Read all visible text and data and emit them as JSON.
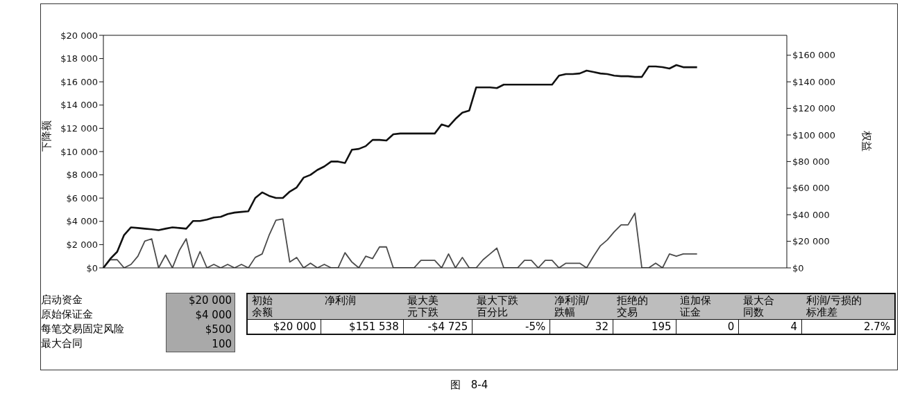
{
  "chart_data": [
    {
      "type": "line",
      "categories": [
        null,
        null,
        null,
        null,
        null,
        null,
        null,
        null,
        null,
        null,
        null,
        null,
        null,
        null,
        null,
        null,
        null,
        null,
        null,
        null,
        null,
        null,
        null,
        null,
        null,
        null,
        null,
        null,
        null,
        null,
        null,
        null,
        null,
        null,
        null,
        null,
        null,
        null,
        null,
        null,
        null,
        null,
        null,
        null,
        null,
        null,
        null,
        null,
        null,
        null,
        null,
        null,
        null,
        null,
        null,
        null,
        null,
        null,
        null,
        null,
        null,
        null,
        null,
        null,
        null,
        null,
        null,
        null,
        null,
        null,
        null,
        null,
        null,
        null,
        null,
        null,
        null,
        null,
        null,
        null,
        null,
        null,
        null,
        null,
        null,
        null,
        null,
        null,
        null,
        null,
        null,
        null,
        null,
        null,
        null,
        null,
        null,
        null,
        null,
        null
      ],
      "series": [
        {
          "color": "#4a4a4a",
          "values": [
            0,
            700,
            700,
            0,
            300,
            1000,
            2300,
            2500,
            0,
            1100,
            0,
            1500,
            2500,
            0,
            1400,
            0,
            300,
            0,
            300,
            0,
            300,
            0,
            900,
            1200,
            2800,
            4100,
            4200,
            500,
            900,
            0,
            400,
            0,
            300,
            0,
            0,
            1300,
            500,
            0,
            1000,
            800,
            1800,
            1800,
            0,
            0,
            0,
            0,
            650,
            650,
            650,
            0,
            1200,
            0,
            900,
            0,
            0,
            700,
            1200,
            1700,
            0,
            0,
            0,
            650,
            650,
            0,
            650,
            650,
            0,
            400,
            400,
            400,
            0,
            1000,
            1900,
            2400,
            3100,
            3700,
            3700,
            4700,
            0,
            0,
            400,
            0,
            1200,
            1000,
            1200,
            1200,
            1200,
            null,
            null,
            null,
            null,
            null,
            null,
            null,
            null,
            null,
            null,
            null,
            null,
            null
          ]
        },
        {
          "color": "#111111",
          "axis": "y2",
          "values": [
            0,
            6800,
            12100,
            24700,
            30500,
            30000,
            29500,
            29000,
            28400,
            29500,
            30500,
            30000,
            29500,
            35300,
            35300,
            36300,
            37900,
            38400,
            40500,
            41600,
            42100,
            42600,
            52600,
            56800,
            54200,
            52600,
            52600,
            57400,
            60500,
            67900,
            70000,
            73700,
            76300,
            80000,
            80000,
            78900,
            88900,
            89500,
            91600,
            96300,
            96300,
            95800,
            100500,
            101100,
            101100,
            101100,
            101100,
            101100,
            101100,
            107900,
            106300,
            112100,
            116800,
            118400,
            135800,
            135800,
            135800,
            135300,
            137900,
            137900,
            137900,
            137900,
            137900,
            137900,
            137900,
            137900,
            144700,
            145800,
            145800,
            146300,
            148400,
            147400,
            146300,
            145800,
            144700,
            144200,
            144200,
            143700,
            143700,
            151600,
            151600,
            151000,
            150000,
            152600,
            151000,
            151000,
            151000,
            null,
            null,
            null,
            null,
            null,
            null,
            null,
            null,
            null,
            null,
            null,
            null,
            null
          ]
        }
      ],
      "ylabel": "下降额",
      "y2label": "权益",
      "ylim": [
        0,
        20000
      ],
      "yticks": [
        {
          "value": 0,
          "label": "$0"
        },
        {
          "value": 2000,
          "label": "$2 000"
        },
        {
          "value": 4000,
          "label": "$4 000"
        },
        {
          "value": 6000,
          "label": "$6 000"
        },
        {
          "value": 8000,
          "label": "$8 000"
        },
        {
          "value": 10000,
          "label": "$10 000"
        },
        {
          "value": 12000,
          "label": "$12 000"
        },
        {
          "value": 14000,
          "label": "$14 000"
        },
        {
          "value": 16000,
          "label": "$16 000"
        },
        {
          "value": 18000,
          "label": "$18 000"
        },
        {
          "value": 20000,
          "label": "$20 000"
        }
      ],
      "y2lim": [
        0,
        175000
      ],
      "y2ticks": [
        {
          "value": 0,
          "label": "$0"
        },
        {
          "value": 20000,
          "label": "$20 000"
        },
        {
          "value": 40000,
          "label": "$40 000"
        },
        {
          "value": 60000,
          "label": "$60 000"
        },
        {
          "value": 80000,
          "label": "$80 000"
        },
        {
          "value": 100000,
          "label": "$100 000"
        },
        {
          "value": 120000,
          "label": "$120 000"
        },
        {
          "value": 140000,
          "label": "$140 000"
        },
        {
          "value": 160000,
          "label": "$160 000"
        }
      ],
      "marker": "none",
      "annotations": [
        "图　8-4"
      ]
    },
    {
      "type": "other",
      "y_categories": [
        "启动资金",
        "原始保证金",
        "每笔交易固定风险",
        "最大合同"
      ],
      "y2_categories": [
        "$20 000",
        "$4 000",
        "$500",
        "100"
      ],
      "categories": [
        "初始余额",
        "净利润",
        "最大美元下跌",
        "最大下跌百分比",
        "净利润/跌幅",
        "拒绝的交易",
        "追加保证金",
        "最大合同数",
        "利润/亏损的标准差"
      ],
      "cell_labels": [
        [
          "$20 000",
          "$151 538",
          "-$4 725",
          "-5%",
          "32",
          "195",
          "0",
          "4",
          "2.7%"
        ]
      ]
    }
  ]
}
